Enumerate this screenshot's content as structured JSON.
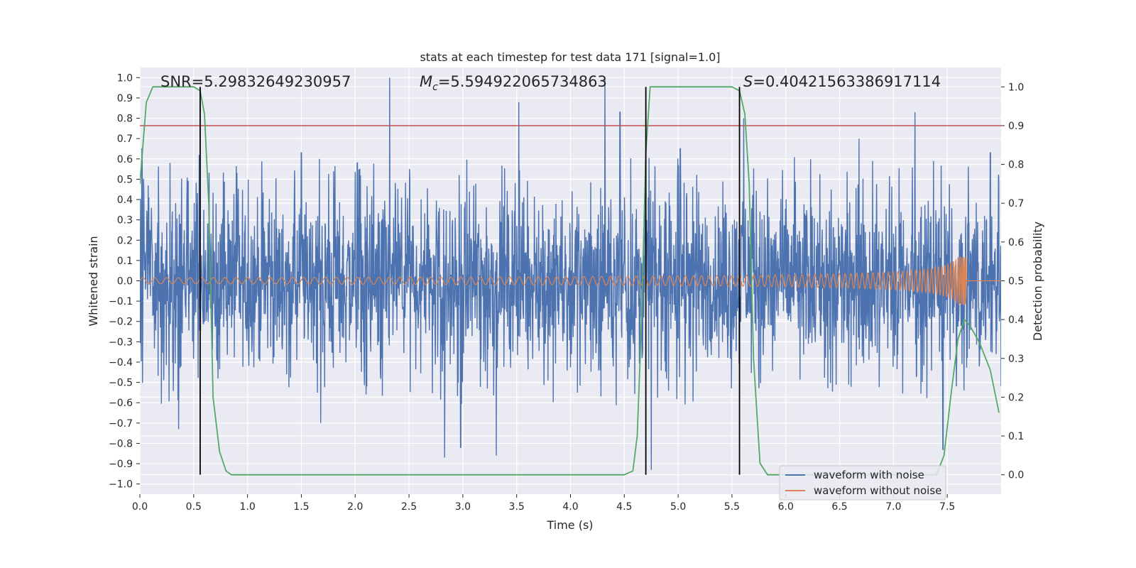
{
  "chart_data": {
    "type": "line",
    "title": "stats at each timestep for test data 171 [signal=1.0]",
    "xlabel": "Time (s)",
    "ylabel_left": "Whitened strain",
    "ylabel_right": "Detection probability",
    "xlim": [
      0.0,
      8.0
    ],
    "ylim_left": [
      -1.05,
      1.05
    ],
    "ylim_right": [
      -0.05,
      1.05
    ],
    "x_ticks": [
      "0.0",
      "0.5",
      "1.0",
      "1.5",
      "2.0",
      "2.5",
      "3.0",
      "3.5",
      "4.0",
      "4.5",
      "5.0",
      "5.5",
      "6.0",
      "6.5",
      "7.0",
      "7.5"
    ],
    "y_ticks_left": [
      "1.0",
      "0.9",
      "0.8",
      "0.7",
      "0.6",
      "0.5",
      "0.4",
      "0.3",
      "0.2",
      "0.1",
      "0.0",
      "−0.1",
      "−0.2",
      "−0.3",
      "−0.4",
      "−0.5",
      "−0.6",
      "−0.7",
      "−0.8",
      "−0.9",
      "−1.0"
    ],
    "y_ticks_right": [
      "1.0",
      "0.9",
      "0.8",
      "0.7",
      "0.6",
      "0.5",
      "0.4",
      "0.3",
      "0.2",
      "0.1",
      "0.0"
    ],
    "grid": true,
    "legend_position": "lower-right",
    "annotations": {
      "snr": "SNR=5.29832649230957",
      "mc_symbol": "M",
      "mc_sub": "c",
      "mc_value": "=5.594922065734863",
      "s_symbol": "S",
      "s_value": "=0.40421563386917114"
    },
    "threshold": {
      "axis": "right",
      "value": 0.9,
      "color": "#c44e52"
    },
    "vlines": [
      0.56,
      4.7,
      5.57
    ],
    "series": [
      {
        "name": "waveform with noise",
        "axis": "left",
        "color": "#4c72b0",
        "noise_envelope": 0.35,
        "peaks": [
          [
            0.02,
            0.65
          ],
          [
            0.28,
            0.58
          ],
          [
            0.36,
            -0.73
          ],
          [
            0.55,
            0.62
          ],
          [
            1.5,
            0.63
          ],
          [
            1.68,
            -0.7
          ],
          [
            2.02,
            0.58
          ],
          [
            2.32,
            1.0
          ],
          [
            2.83,
            -0.87
          ],
          [
            2.98,
            -0.82
          ],
          [
            3.31,
            -0.86
          ],
          [
            3.52,
            0.88
          ],
          [
            4.32,
            1.0
          ],
          [
            4.46,
            0.83
          ],
          [
            4.75,
            -0.93
          ],
          [
            5.02,
            0.65
          ],
          [
            5.61,
            0.8
          ],
          [
            6.68,
            0.7
          ],
          [
            7.2,
            0.83
          ],
          [
            7.46,
            -0.83
          ],
          [
            7.9,
            0.63
          ]
        ]
      },
      {
        "name": "waveform without noise",
        "axis": "left",
        "color": "#dd8452",
        "chirp_start_amplitude": 0.015,
        "chirp_peak_amplitude": 0.12,
        "merger_time": 7.68
      },
      {
        "name": "detection probability",
        "axis": "right",
        "color": "#55a868",
        "x": [
          0.0,
          0.06,
          0.12,
          0.2,
          0.3,
          0.4,
          0.5,
          0.56,
          0.6,
          0.64,
          0.68,
          0.74,
          0.8,
          0.85,
          0.9,
          1.5,
          2.5,
          3.5,
          4.0,
          4.5,
          4.58,
          4.62,
          4.66,
          4.7,
          4.74,
          4.8,
          5.0,
          5.2,
          5.5,
          5.57,
          5.62,
          5.66,
          5.7,
          5.76,
          5.83,
          5.9,
          6.2,
          6.5,
          7.0,
          7.2,
          7.4,
          7.47,
          7.54,
          7.6,
          7.66,
          7.72,
          7.8,
          7.9,
          7.98
        ],
        "y": [
          0.75,
          0.96,
          1.0,
          1.0,
          1.0,
          1.0,
          1.0,
          0.99,
          0.93,
          0.7,
          0.2,
          0.06,
          0.01,
          0.0,
          0.0,
          0.0,
          0.0,
          0.0,
          0.0,
          0.0,
          0.01,
          0.1,
          0.4,
          0.83,
          1.0,
          1.0,
          1.0,
          1.0,
          1.0,
          0.99,
          0.93,
          0.75,
          0.3,
          0.03,
          0.0,
          0.0,
          0.0,
          0.0,
          0.0,
          0.0,
          0.0,
          0.05,
          0.22,
          0.35,
          0.4,
          0.38,
          0.34,
          0.27,
          0.16
        ]
      }
    ]
  }
}
